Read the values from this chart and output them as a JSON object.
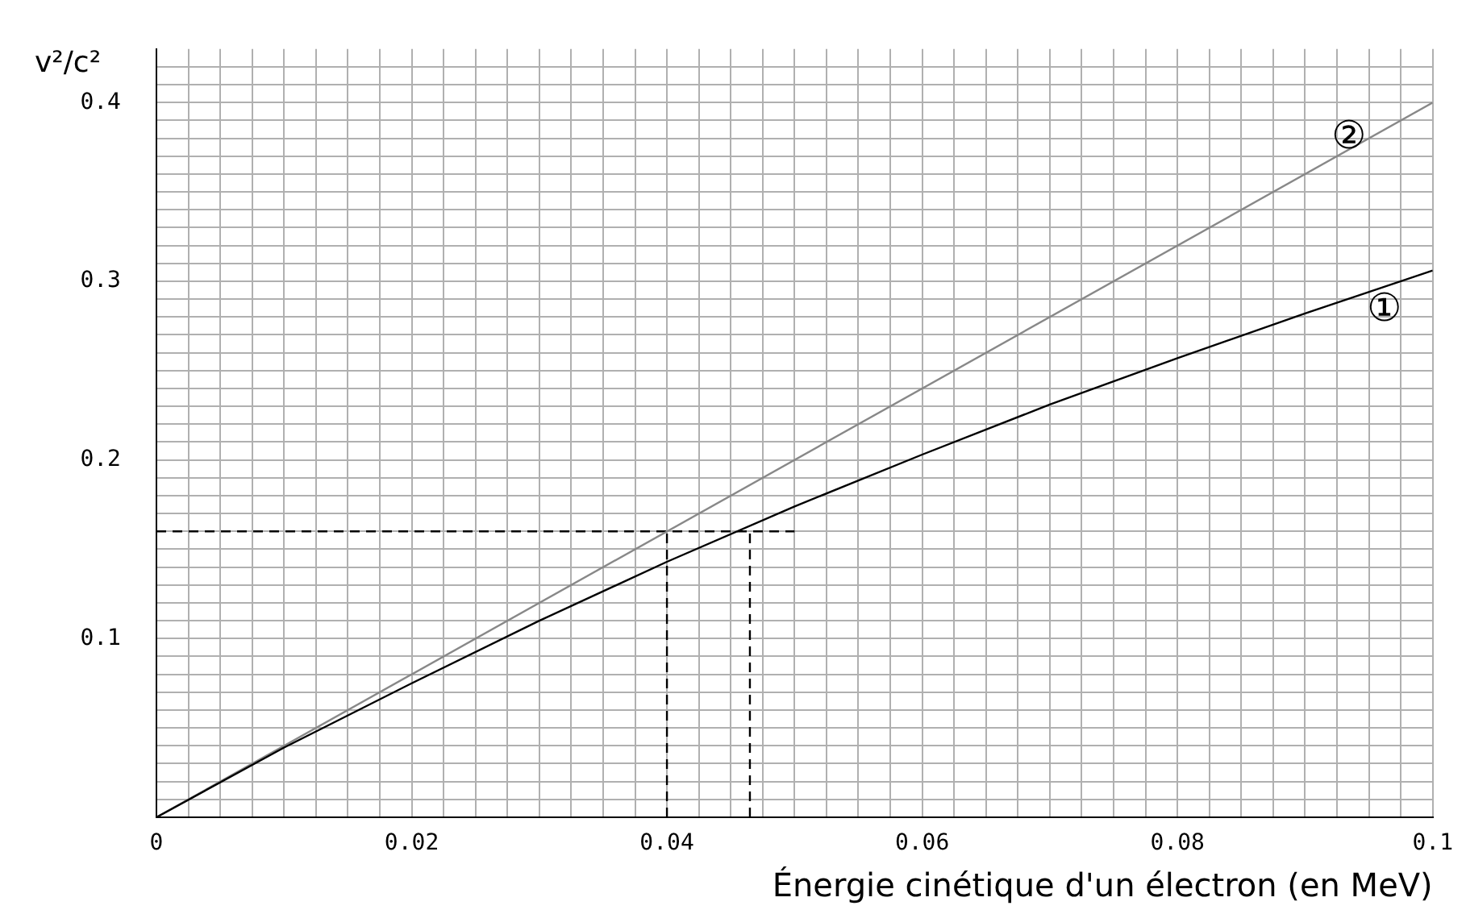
{
  "chart_data": {
    "type": "line",
    "xlabel": "Énergie cinétique d'un électron (en MeV)",
    "ylabel": "v²/c²",
    "xlim": [
      0,
      0.1
    ],
    "ylim": [
      0,
      0.43
    ],
    "xticks": [
      0,
      {
        "value": 0.0025,
        "label": null
      },
      {
        "value": 0.005,
        "label": null
      },
      {
        "value": 0.0075,
        "label": null
      },
      {
        "value": 0.01,
        "label": null
      },
      {
        "value": 0.0125,
        "label": null
      },
      {
        "value": 0.015,
        "label": null
      },
      {
        "value": 0.0175,
        "label": null
      },
      {
        "value": 0.02,
        "label": "0.02"
      },
      {
        "value": 0.0225,
        "label": null
      },
      {
        "value": 0.025,
        "label": null
      },
      {
        "value": 0.0275,
        "label": null
      },
      {
        "value": 0.03,
        "label": null
      },
      {
        "value": 0.0325,
        "label": null
      },
      {
        "value": 0.035,
        "label": null
      },
      {
        "value": 0.0375,
        "label": null
      },
      {
        "value": 0.04,
        "label": "0.04"
      },
      {
        "value": 0.0425,
        "label": null
      },
      {
        "value": 0.045,
        "label": null
      },
      {
        "value": 0.0475,
        "label": null
      },
      {
        "value": 0.05,
        "label": null
      },
      {
        "value": 0.0525,
        "label": null
      },
      {
        "value": 0.055,
        "label": null
      },
      {
        "value": 0.0575,
        "label": null
      },
      {
        "value": 0.06,
        "label": "0.06"
      },
      {
        "value": 0.0625,
        "label": null
      },
      {
        "value": 0.065,
        "label": null
      },
      {
        "value": 0.0675,
        "label": null
      },
      {
        "value": 0.07,
        "label": null
      },
      {
        "value": 0.0725,
        "label": null
      },
      {
        "value": 0.075,
        "label": null
      },
      {
        "value": 0.0775,
        "label": null
      },
      {
        "value": 0.08,
        "label": "0.08"
      },
      {
        "value": 0.0825,
        "label": null
      },
      {
        "value": 0.085,
        "label": null
      },
      {
        "value": 0.0875,
        "label": null
      },
      {
        "value": 0.09,
        "label": null
      },
      {
        "value": 0.0925,
        "label": null
      },
      {
        "value": 0.095,
        "label": null
      },
      {
        "value": 0.0975,
        "label": null
      },
      {
        "value": 0.1,
        "label": "0.1"
      }
    ],
    "yticks": [
      {
        "value": 0.01,
        "label": null
      },
      {
        "value": 0.02,
        "label": null
      },
      {
        "value": 0.03,
        "label": null
      },
      {
        "value": 0.04,
        "label": null
      },
      {
        "value": 0.05,
        "label": null
      },
      {
        "value": 0.06,
        "label": null
      },
      {
        "value": 0.07,
        "label": null
      },
      {
        "value": 0.08,
        "label": null
      },
      {
        "value": 0.09,
        "label": null
      },
      0.1,
      {
        "value": 0.11,
        "label": null
      },
      {
        "value": 0.12,
        "label": null
      },
      {
        "value": 0.13,
        "label": null
      },
      {
        "value": 0.14,
        "label": null
      },
      {
        "value": 0.15,
        "label": null
      },
      {
        "value": 0.16,
        "label": null
      },
      {
        "value": 0.17,
        "label": null
      },
      {
        "value": 0.18,
        "label": null
      },
      {
        "value": 0.19,
        "label": null
      },
      0.2,
      {
        "value": 0.21,
        "label": null
      },
      {
        "value": 0.22,
        "label": null
      },
      {
        "value": 0.23,
        "label": null
      },
      {
        "value": 0.24,
        "label": null
      },
      {
        "value": 0.25,
        "label": null
      },
      {
        "value": 0.26,
        "label": null
      },
      {
        "value": 0.27,
        "label": null
      },
      {
        "value": 0.28,
        "label": null
      },
      {
        "value": 0.29,
        "label": null
      },
      0.3,
      {
        "value": 0.31,
        "label": null
      },
      {
        "value": 0.32,
        "label": null
      },
      {
        "value": 0.33,
        "label": null
      },
      {
        "value": 0.34,
        "label": null
      },
      {
        "value": 0.35,
        "label": null
      },
      {
        "value": 0.36,
        "label": null
      },
      {
        "value": 0.37,
        "label": null
      },
      {
        "value": 0.38,
        "label": null
      },
      {
        "value": 0.39,
        "label": null
      },
      0.4,
      {
        "value": 0.41,
        "label": null
      },
      {
        "value": 0.42,
        "label": null
      }
    ],
    "grid": true,
    "legend": false,
    "series": [
      {
        "name": "①",
        "color": "#000000",
        "x": [
          0,
          0.01,
          0.02,
          0.03,
          0.04,
          0.05,
          0.06,
          0.07,
          0.08,
          0.09,
          0.1
        ],
        "values": [
          0,
          0.039,
          0.075,
          0.11,
          0.143,
          0.174,
          0.203,
          0.231,
          0.257,
          0.282,
          0.306
        ]
      },
      {
        "name": "②",
        "color": "#888888",
        "x": [
          0,
          0.1
        ],
        "values": [
          0,
          0.4
        ]
      },
      {
        "color": "#000000",
        "line_style": "dashed",
        "x": [
          0,
          0.05
        ],
        "values": [
          0.16,
          0.16
        ]
      },
      {
        "color": "#000000",
        "line_style": "dashed",
        "x": [
          0.04,
          0.04
        ],
        "values": [
          0,
          0.16
        ]
      },
      {
        "color": "#000000",
        "line_style": "dashed",
        "x": [
          0.0465,
          0.0465
        ],
        "values": [
          0,
          0.16
        ]
      }
    ]
  }
}
